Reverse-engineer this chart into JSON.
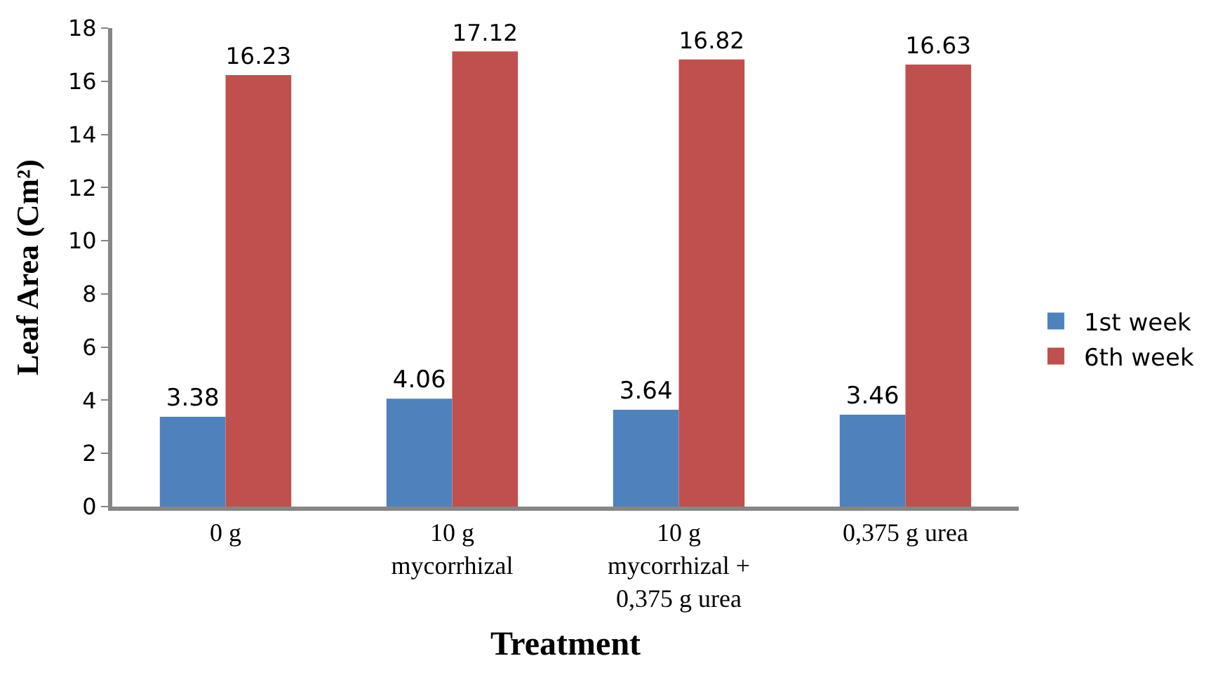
{
  "chart_data": {
    "type": "bar",
    "xlabel": "Treatment",
    "ylabel": "Leaf Area (Cm²)",
    "categories": [
      "0 g",
      "10 g\nmycorrhizal",
      "10 g\nmycorrhizal +\n0,375 g urea",
      "0,375 g urea"
    ],
    "series": [
      {
        "name": "1st week",
        "color": "#4f81bd",
        "values": [
          3.38,
          4.06,
          3.64,
          3.46
        ]
      },
      {
        "name": "6th week",
        "color": "#c0504d",
        "values": [
          16.23,
          17.12,
          16.82,
          16.63
        ]
      }
    ],
    "ylim": [
      0,
      18
    ],
    "yticks": [
      0,
      2,
      4,
      6,
      8,
      10,
      12,
      14,
      16,
      18
    ],
    "legend": "right",
    "data_labels": true
  }
}
